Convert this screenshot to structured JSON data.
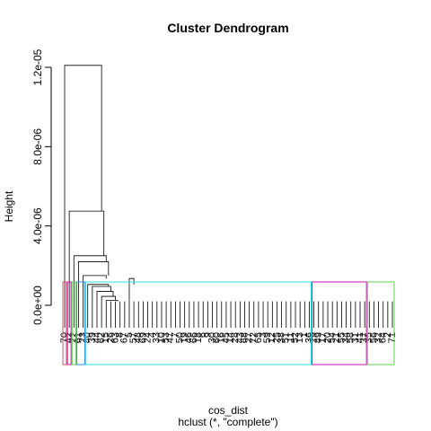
{
  "chart_data": {
    "type": "dendrogram",
    "title": "Cluster Dendrogram",
    "ylabel": "Height",
    "xlabel": "cos_dist",
    "subtitle": "hclust (*, \"complete\")",
    "ylim": [
      0,
      1.2e-05
    ],
    "y_ticks": [
      {
        "value": 0,
        "label": "0.0e+00"
      },
      {
        "value": 4e-06,
        "label": "4.0e-06"
      },
      {
        "value": 8e-06,
        "label": "8.0e-06"
      },
      {
        "value": 1.2e-05,
        "label": "1.2e-05"
      }
    ],
    "leaf_count": 72,
    "merges": [
      {
        "left": [
          1,
          1
        ],
        "right": [
          2,
          16
        ],
        "height": 1.21e-05
      },
      {
        "left": [
          2,
          2
        ],
        "right": [
          3,
          16
        ],
        "height": 4.75e-06
      },
      {
        "left": [
          3,
          3
        ],
        "right": [
          4,
          16
        ],
        "height": 2.5e-06
      },
      {
        "left": [
          4,
          4
        ],
        "right": [
          5,
          16
        ],
        "height": 2.2e-06
      },
      {
        "left": [
          5,
          5
        ],
        "right": [
          6,
          14
        ],
        "height": 1.5e-06
      },
      {
        "left": [
          15,
          15
        ],
        "right": [
          16,
          16
        ],
        "height": 1.35e-06
      },
      {
        "left": [
          6,
          6
        ],
        "right": [
          7,
          14
        ],
        "height": 1.05e-06
      },
      {
        "left": [
          7,
          7
        ],
        "right": [
          8,
          14
        ],
        "height": 9.5e-07
      },
      {
        "left": [
          8,
          8
        ],
        "right": [
          9,
          14
        ],
        "height": 7e-07
      },
      {
        "left": [
          9,
          9
        ],
        "right": [
          10,
          14
        ],
        "height": 4.5e-07
      },
      {
        "left": [
          10,
          10
        ],
        "right": [
          11,
          14
        ],
        "height": 2.5e-07
      }
    ],
    "leaf_labels": [
      "70",
      "42",
      "22",
      "61",
      "23",
      "40",
      "39",
      "44",
      "62",
      "15",
      "26",
      "63",
      "8",
      "67",
      "5",
      "57",
      "48",
      "69",
      "24",
      "4",
      "33",
      "10",
      "53",
      "47",
      "7",
      "50",
      "19",
      "46",
      "66",
      "18",
      "6",
      "9",
      "30",
      "60",
      "16",
      "45",
      "14",
      "28",
      "43",
      "68",
      "27",
      "72",
      "65",
      "3",
      "59",
      "12",
      "25",
      "38",
      "51",
      "11",
      "52",
      "13",
      "1",
      "36",
      "29",
      "49",
      "17",
      "20",
      "54",
      "21",
      "55",
      "34",
      "58",
      "31",
      "41",
      "37",
      "35",
      "56",
      "32",
      "64",
      "2",
      "71"
    ],
    "cluster_boxes": [
      {
        "from_leaf": 1,
        "to_leaf": 1,
        "color": "#DF536B"
      },
      {
        "from_leaf": 2,
        "to_leaf": 2,
        "color": "#CD0BBC"
      },
      {
        "from_leaf": 3,
        "to_leaf": 3,
        "color": "#61D04F"
      },
      {
        "from_leaf": 4,
        "to_leaf": 5,
        "color": "#2297E6"
      },
      {
        "from_leaf": 6,
        "to_leaf": 54,
        "color": "#28E2E5"
      },
      {
        "from_leaf": 55,
        "to_leaf": 66,
        "color": "#CD0BBC"
      },
      {
        "from_leaf": 67,
        "to_leaf": 72,
        "color": "#61D04F"
      }
    ]
  }
}
